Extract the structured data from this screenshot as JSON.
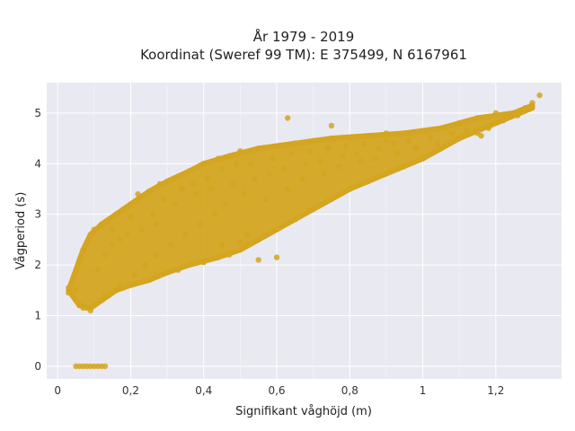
{
  "chart_data": {
    "type": "scatter",
    "title": "År 1979 - 2019",
    "subtitle": "Koordinat (Sweref 99 TM): E 375499, N 6167961",
    "xlabel": "Signifikant våghöjd (m)",
    "ylabel": "Vågperiod (s)",
    "xlim": [
      -0.03,
      1.38
    ],
    "ylim": [
      -0.25,
      5.6
    ],
    "x_ticks": [
      0,
      0.2,
      0.4,
      0.6,
      0.8,
      1,
      1.2
    ],
    "x_tick_labels": [
      "0",
      "0,2",
      "0,4",
      "0,6",
      "0,8",
      "1",
      "1,2"
    ],
    "y_ticks": [
      0,
      1,
      2,
      3,
      4,
      5
    ],
    "y_tick_labels": [
      "0",
      "1",
      "2",
      "3",
      "4",
      "5"
    ],
    "grid": true,
    "marker_color": "#D4A520",
    "background_color": "#E9E9F1",
    "series": [
      {
        "values": [
          [
            0.05,
            0
          ],
          [
            0.06,
            0
          ],
          [
            0.07,
            0
          ],
          [
            0.08,
            0
          ],
          [
            0.09,
            0
          ],
          [
            0.1,
            0
          ],
          [
            0.11,
            0
          ],
          [
            0.12,
            0
          ],
          [
            0.13,
            0
          ],
          [
            0.03,
            1.45
          ],
          [
            0.03,
            1.55
          ],
          [
            0.04,
            1.4
          ],
          [
            0.04,
            1.65
          ],
          [
            0.05,
            1.3
          ],
          [
            0.05,
            1.5
          ],
          [
            0.05,
            1.85
          ],
          [
            0.06,
            1.2
          ],
          [
            0.06,
            2.1
          ],
          [
            0.07,
            1.15
          ],
          [
            0.07,
            2.3
          ],
          [
            0.08,
            1.15
          ],
          [
            0.08,
            2.45
          ],
          [
            0.09,
            1.1
          ],
          [
            0.09,
            2.6
          ],
          [
            0.1,
            1.2
          ],
          [
            0.1,
            2.7
          ],
          [
            0.12,
            1.3
          ],
          [
            0.12,
            2.8
          ],
          [
            0.14,
            1.4
          ],
          [
            0.14,
            2.9
          ],
          [
            0.16,
            1.5
          ],
          [
            0.16,
            3.0
          ],
          [
            0.18,
            1.55
          ],
          [
            0.18,
            3.1
          ],
          [
            0.2,
            1.6
          ],
          [
            0.2,
            3.2
          ],
          [
            0.22,
            1.65
          ],
          [
            0.22,
            3.3
          ],
          [
            0.25,
            1.7
          ],
          [
            0.25,
            3.45
          ],
          [
            0.28,
            1.8
          ],
          [
            0.28,
            3.6
          ],
          [
            0.3,
            1.85
          ],
          [
            0.3,
            3.65
          ],
          [
            0.33,
            1.9
          ],
          [
            0.33,
            3.75
          ],
          [
            0.36,
            2.0
          ],
          [
            0.36,
            3.85
          ],
          [
            0.4,
            2.05
          ],
          [
            0.4,
            4.0
          ],
          [
            0.44,
            2.15
          ],
          [
            0.44,
            4.1
          ],
          [
            0.47,
            2.2
          ],
          [
            0.47,
            4.15
          ],
          [
            0.5,
            2.3
          ],
          [
            0.5,
            4.25
          ],
          [
            0.55,
            2.5
          ],
          [
            0.55,
            4.3
          ],
          [
            0.6,
            2.7
          ],
          [
            0.6,
            4.35
          ],
          [
            0.65,
            2.9
          ],
          [
            0.65,
            4.4
          ],
          [
            0.7,
            3.1
          ],
          [
            0.7,
            4.45
          ],
          [
            0.75,
            3.3
          ],
          [
            0.75,
            4.5
          ],
          [
            0.8,
            3.5
          ],
          [
            0.8,
            4.5
          ],
          [
            0.85,
            3.65
          ],
          [
            0.85,
            4.55
          ],
          [
            0.9,
            3.8
          ],
          [
            0.9,
            4.6
          ],
          [
            0.95,
            3.95
          ],
          [
            0.95,
            4.6
          ],
          [
            1.0,
            4.1
          ],
          [
            1.0,
            4.65
          ],
          [
            1.05,
            4.3
          ],
          [
            1.05,
            4.7
          ],
          [
            1.1,
            4.5
          ],
          [
            1.1,
            4.8
          ],
          [
            1.15,
            4.6
          ],
          [
            1.15,
            4.9
          ],
          [
            1.2,
            4.8
          ],
          [
            1.2,
            5.0
          ],
          [
            1.25,
            5.0
          ],
          [
            1.28,
            5.1
          ],
          [
            1.3,
            5.2
          ],
          [
            1.32,
            5.35
          ],
          [
            0.63,
            4.9
          ],
          [
            0.75,
            4.75
          ],
          [
            0.6,
            2.15
          ],
          [
            0.55,
            2.1
          ],
          [
            0.5,
            2.45
          ],
          [
            0.52,
            2.6
          ],
          [
            0.45,
            2.4
          ],
          [
            0.22,
            3.4
          ],
          [
            0.15,
            2.7
          ],
          [
            0.2,
            2.95
          ],
          [
            0.26,
            3.0
          ],
          [
            0.32,
            3.2
          ],
          [
            0.38,
            3.4
          ],
          [
            0.42,
            3.5
          ],
          [
            0.48,
            3.6
          ],
          [
            0.54,
            3.7
          ],
          [
            0.58,
            3.8
          ],
          [
            0.62,
            3.9
          ],
          [
            0.68,
            4.0
          ],
          [
            0.72,
            4.05
          ],
          [
            0.78,
            4.15
          ],
          [
            0.82,
            4.2
          ],
          [
            0.88,
            4.3
          ],
          [
            0.92,
            4.4
          ],
          [
            0.96,
            4.45
          ],
          [
            1.02,
            4.5
          ],
          [
            1.08,
            4.6
          ],
          [
            1.12,
            4.65
          ],
          [
            1.18,
            4.7
          ],
          [
            1.22,
            4.85
          ],
          [
            1.26,
            4.95
          ],
          [
            0.13,
            1.4
          ],
          [
            0.17,
            1.6
          ],
          [
            0.21,
            1.8
          ],
          [
            0.24,
            2.0
          ],
          [
            0.27,
            2.2
          ],
          [
            0.31,
            2.4
          ],
          [
            0.35,
            2.6
          ],
          [
            0.39,
            2.8
          ],
          [
            0.43,
            3.0
          ],
          [
            0.46,
            3.2
          ],
          [
            0.51,
            3.4
          ],
          [
            0.57,
            3.3
          ],
          [
            0.63,
            3.5
          ],
          [
            0.67,
            3.7
          ],
          [
            0.73,
            3.8
          ],
          [
            0.77,
            3.95
          ],
          [
            0.83,
            4.05
          ],
          [
            0.87,
            4.1
          ],
          [
            0.93,
            4.2
          ],
          [
            0.98,
            4.3
          ],
          [
            1.04,
            4.4
          ],
          [
            1.1,
            4.5
          ],
          [
            1.16,
            4.55
          ],
          [
            0.11,
            1.9
          ],
          [
            0.13,
            2.2
          ],
          [
            0.15,
            2.4
          ],
          [
            0.17,
            2.5
          ],
          [
            0.19,
            2.6
          ],
          [
            0.23,
            2.7
          ],
          [
            0.27,
            2.8
          ],
          [
            0.29,
            3.3
          ],
          [
            0.34,
            3.5
          ],
          [
            0.37,
            3.6
          ],
          [
            0.41,
            3.7
          ],
          [
            0.45,
            3.9
          ],
          [
            0.49,
            4.0
          ],
          [
            0.53,
            4.0
          ],
          [
            0.59,
            4.1
          ],
          [
            0.64,
            4.2
          ],
          [
            0.69,
            4.25
          ],
          [
            0.74,
            4.3
          ],
          [
            0.79,
            4.35
          ],
          [
            0.84,
            4.4
          ],
          [
            0.9,
            4.45
          ]
        ]
      }
    ]
  }
}
